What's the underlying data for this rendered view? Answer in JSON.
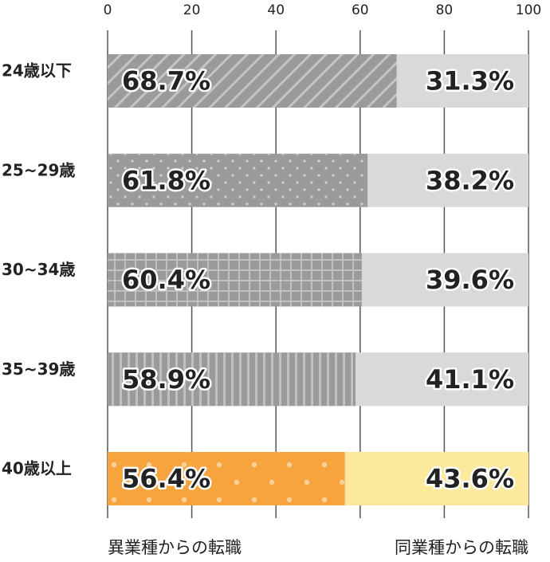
{
  "chart_data": {
    "type": "stacked-bar-horizontal",
    "categories": [
      "24歳以下",
      "25~29歳",
      "30~34歳",
      "35~39歳",
      "40歳以上"
    ],
    "series": [
      {
        "name": "異業種からの転職",
        "colors": [
          "#9a9a9a",
          "#9a9a9a",
          "#9a9a9a",
          "#9a9a9a",
          "#f7a33e"
        ],
        "values": [
          68.7,
          61.8,
          60.4,
          58.9,
          56.4
        ],
        "value_labels": [
          "68.7%",
          "61.8%",
          "60.4%",
          "58.9%",
          "56.4%"
        ]
      },
      {
        "name": "同業種からの転職",
        "colors": [
          "#d9d9d9",
          "#d9d9d9",
          "#d9d9d9",
          "#d9d9d9",
          "#fde99b"
        ],
        "values": [
          31.3,
          38.2,
          39.6,
          41.1,
          43.6
        ],
        "value_labels": [
          "31.3%",
          "38.2%",
          "39.6%",
          "41.1%",
          "43.6%"
        ]
      }
    ],
    "xlim": [
      0,
      100
    ],
    "xticks": [
      0,
      20,
      40,
      60,
      80,
      100
    ],
    "grid": true
  }
}
